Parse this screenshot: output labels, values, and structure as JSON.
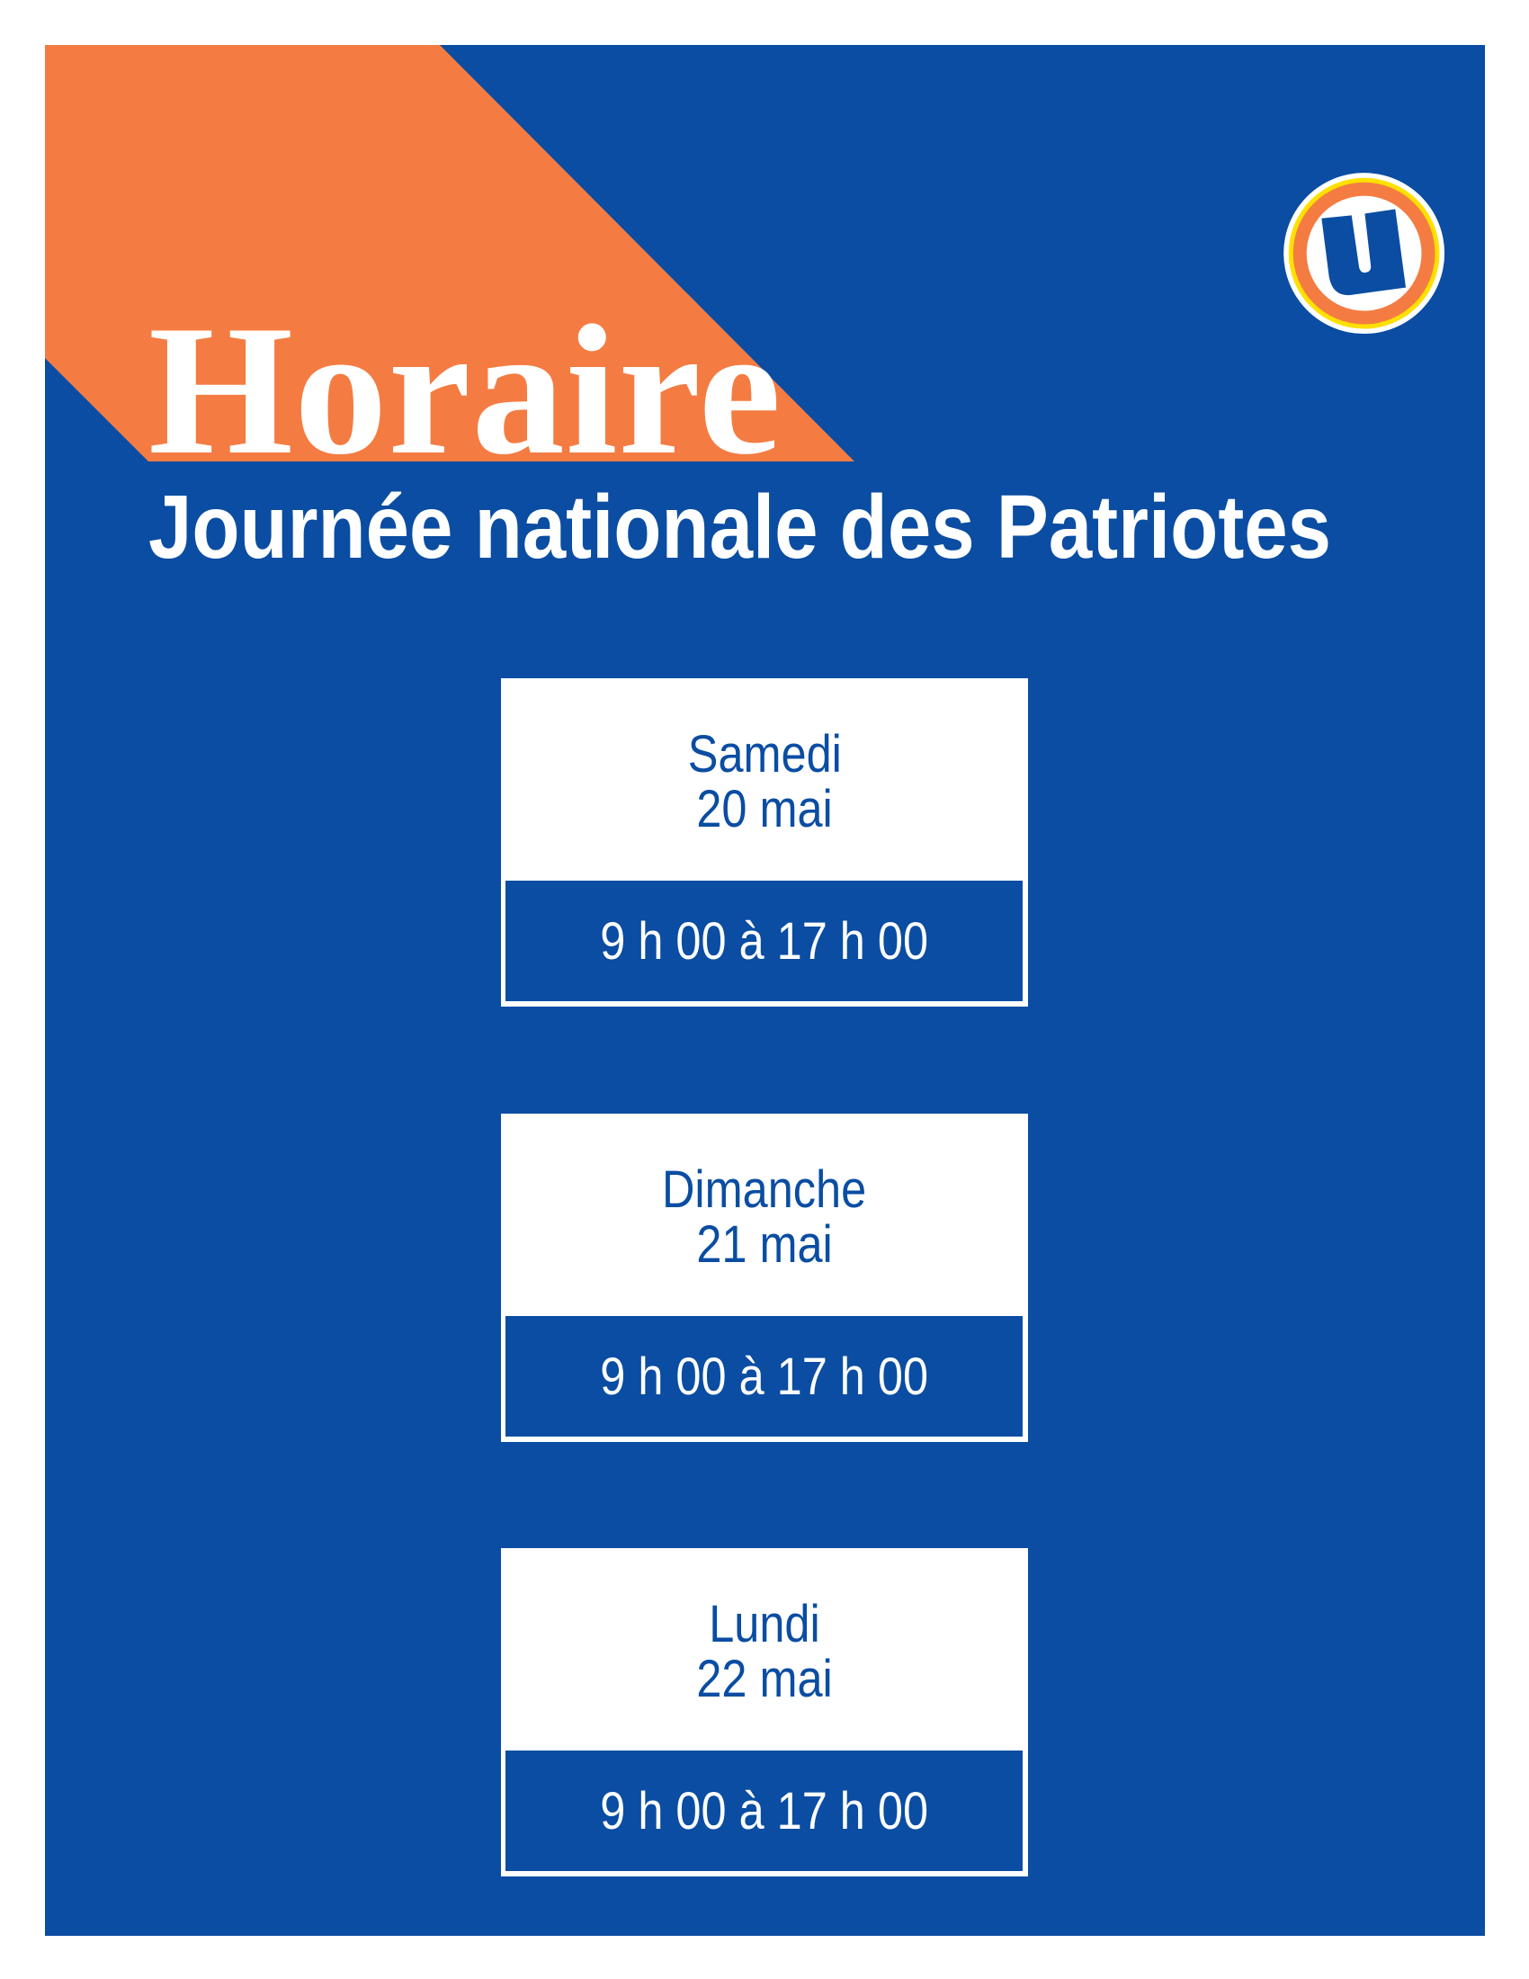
{
  "title": "Horaire",
  "subtitle": "Journée nationale des Patriotes",
  "logo": {
    "icon": "u-brand-logo-icon",
    "letter": "U"
  },
  "colors": {
    "background": "#0a4da2",
    "accent_orange": "#f47c42",
    "accent_yellow": "#ffe000",
    "text_light": "#ffffff"
  },
  "schedule": [
    {
      "day": "Samedi",
      "date": "20 mai",
      "hours": "9 h 00 à 17 h 00"
    },
    {
      "day": "Dimanche",
      "date": "21 mai",
      "hours": "9 h 00 à 17 h 00"
    },
    {
      "day": "Lundi",
      "date": "22 mai",
      "hours": "9 h 00 à 17 h 00"
    }
  ]
}
